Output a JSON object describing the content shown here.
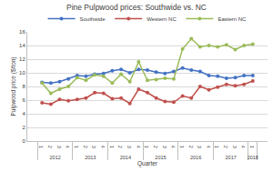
{
  "chart_data": {
    "type": "line",
    "title": "Pine Pulpwood prices: Southwide vs. NC",
    "x_label": "Quarter",
    "y_label": "Pulpwood price ($/ton)",
    "categories": [
      "1",
      "2",
      "3",
      "4",
      "1",
      "2",
      "3",
      "4",
      "1",
      "2",
      "3",
      "4",
      "1",
      "2",
      "3",
      "4",
      "1",
      "2",
      "3",
      "4",
      "1",
      "2",
      "3",
      "4",
      "1"
    ],
    "groups": [
      "2012",
      "2012",
      "2012",
      "2012",
      "2013",
      "2013",
      "2013",
      "2013",
      "2014",
      "2014",
      "2014",
      "2014",
      "2015",
      "2015",
      "2015",
      "2015",
      "2016",
      "2016",
      "2016",
      "2016",
      "2017",
      "2017",
      "2017",
      "2017",
      "2018"
    ],
    "series": [
      {
        "name": "Southwide",
        "color": "#4472c4",
        "marker": "circle",
        "line_style": "solid",
        "values": [
          8.6,
          8.5,
          8.7,
          9.1,
          9.6,
          9.5,
          9.8,
          9.9,
          10.3,
          10.5,
          10.0,
          10.5,
          10.4,
          10.1,
          9.9,
          10.2,
          10.7,
          10.4,
          10.2,
          9.6,
          9.5,
          9.2,
          9.3,
          9.6,
          9.6
        ]
      },
      {
        "name": "Western NC",
        "color": "#c0504d",
        "marker": "circle",
        "line_style": "solid",
        "values": [
          5.6,
          5.4,
          6.1,
          5.9,
          6.1,
          6.3,
          7.1,
          7.0,
          6.2,
          6.3,
          5.5,
          7.6,
          7.1,
          6.3,
          5.8,
          5.7,
          6.6,
          6.3,
          8.0,
          7.5,
          7.9,
          8.3,
          8.1,
          8.3,
          8.8
        ]
      },
      {
        "name": "Eastern NC",
        "color": "#9bbb59",
        "marker": "circle",
        "line_style": "solid",
        "values": [
          8.5,
          7.0,
          7.6,
          8.0,
          9.3,
          8.9,
          9.7,
          9.5,
          8.5,
          9.8,
          8.7,
          11.6,
          8.9,
          9.0,
          9.2,
          9.1,
          13.5,
          15.0,
          13.8,
          14.0,
          13.8,
          14.1,
          13.4,
          14.0,
          14.2
        ]
      }
    ],
    "ylim": [
      0,
      16
    ],
    "yticks": [
      0,
      2,
      4,
      6,
      8,
      10,
      12,
      14,
      16
    ],
    "grid": true,
    "legend": "top"
  }
}
